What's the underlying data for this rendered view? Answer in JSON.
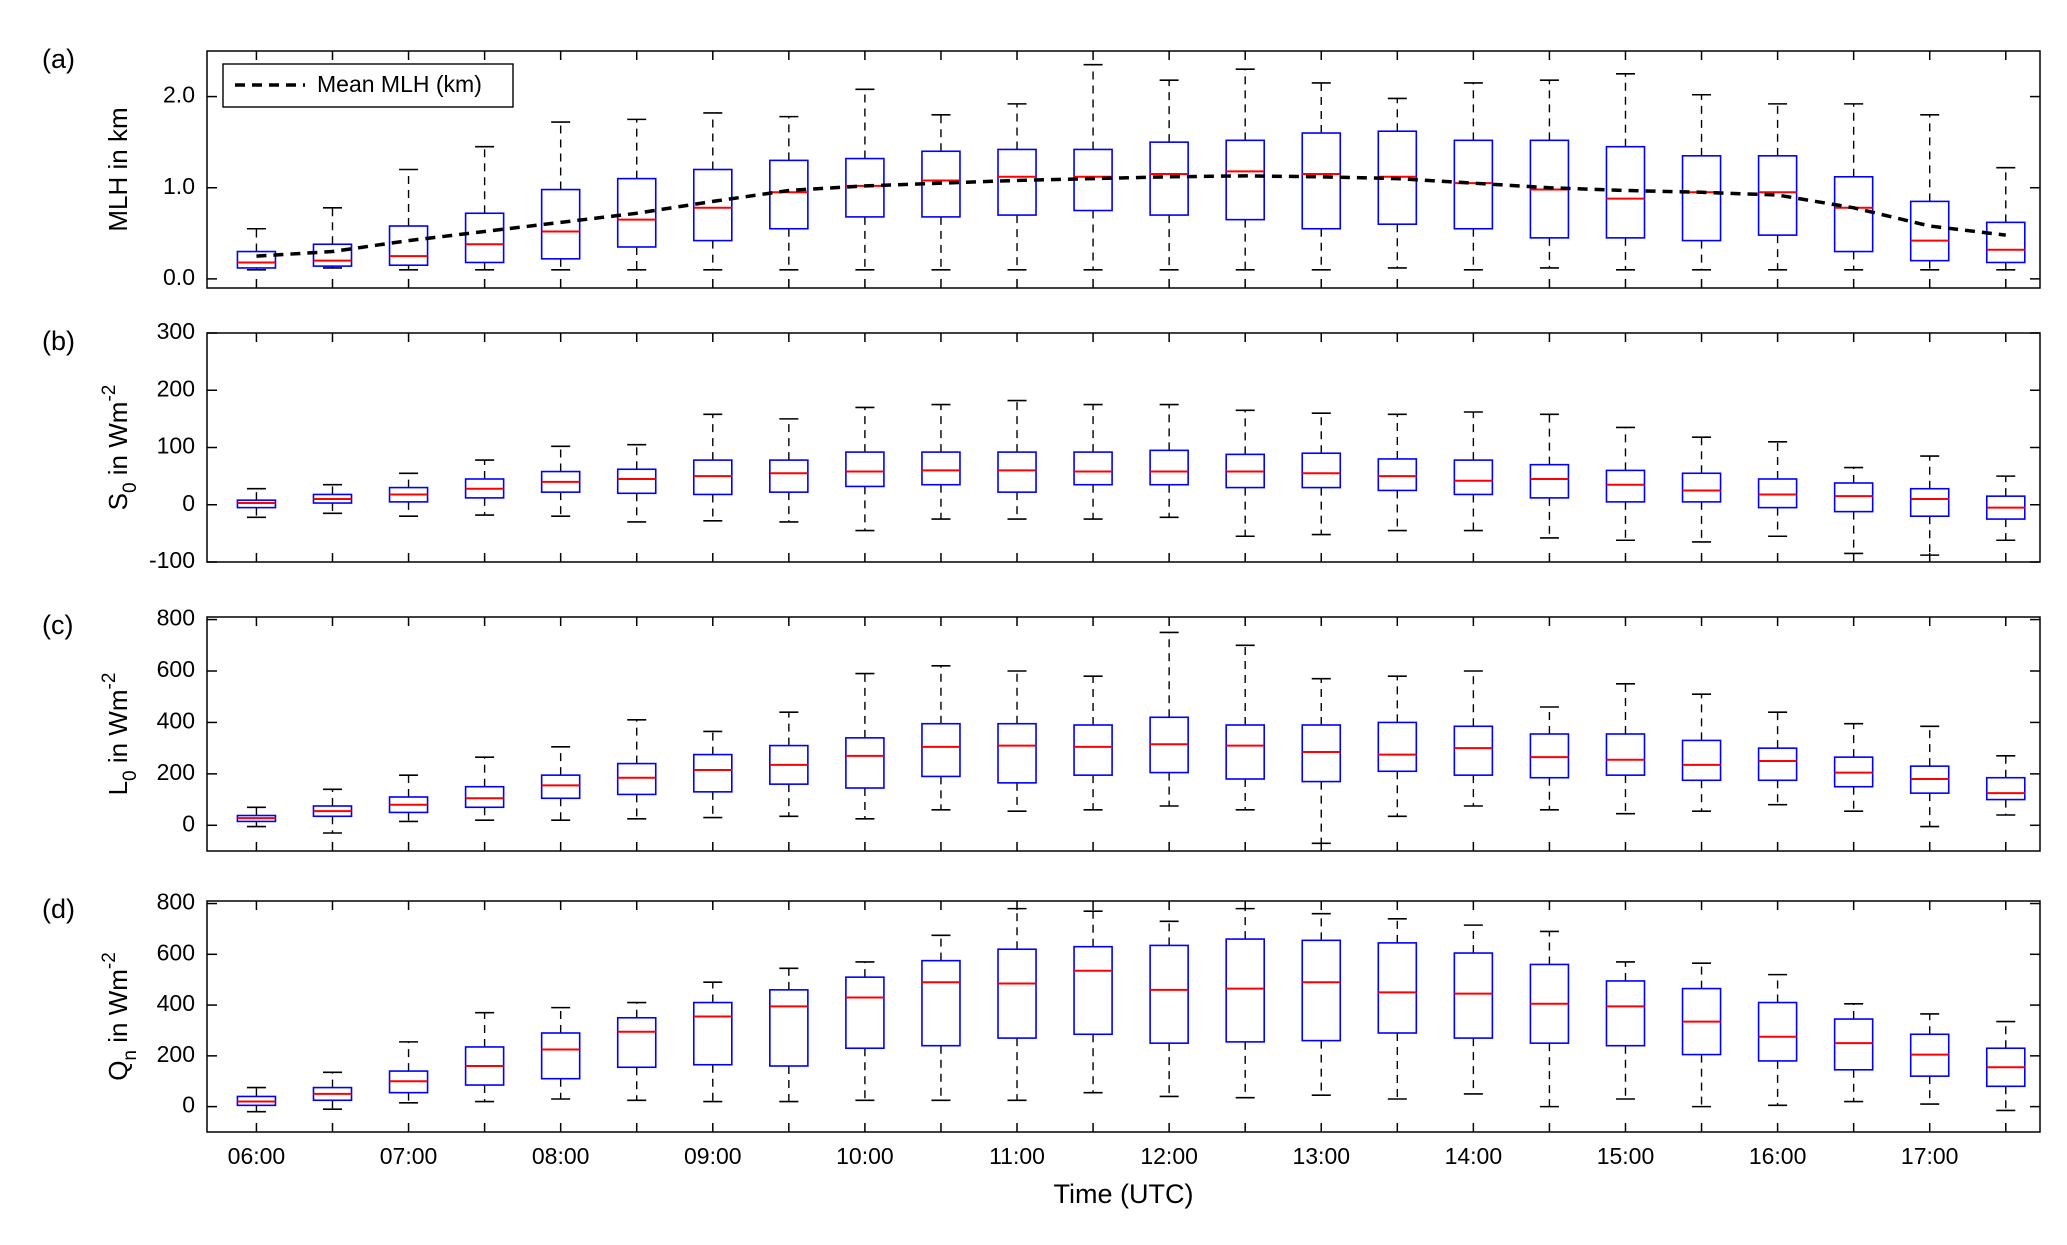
{
  "chart_data": [
    {
      "type": "box",
      "label": "(a)",
      "ylabel": [
        {
          "text": "MLH in km"
        }
      ],
      "ylim": [
        -0.1,
        2.5
      ],
      "yticks": [
        {
          "value": 0,
          "label": "0.0"
        },
        {
          "value": 1,
          "label": "1.0"
        },
        {
          "value": 2,
          "label": "2.0"
        }
      ],
      "box_color": "#0000ff",
      "median_color": "#ff0000",
      "legend": "upper left",
      "whislo": [
        0.1,
        0.12,
        0.1,
        0.1,
        0.1,
        0.1,
        0.1,
        0.1,
        0.1,
        0.1,
        0.1,
        0.1,
        0.1,
        0.1,
        0.1,
        0.12,
        0.1,
        0.12,
        0.1,
        0.1,
        0.1,
        0.1,
        0.1,
        0.1
      ],
      "q1": [
        0.12,
        0.14,
        0.15,
        0.18,
        0.22,
        0.35,
        0.42,
        0.55,
        0.68,
        0.68,
        0.7,
        0.75,
        0.7,
        0.65,
        0.55,
        0.6,
        0.55,
        0.45,
        0.45,
        0.42,
        0.48,
        0.3,
        0.2,
        0.18
      ],
      "median": [
        0.18,
        0.2,
        0.25,
        0.38,
        0.52,
        0.65,
        0.78,
        0.95,
        1.02,
        1.08,
        1.12,
        1.12,
        1.15,
        1.18,
        1.15,
        1.12,
        1.05,
        0.98,
        0.88,
        0.95,
        0.95,
        0.78,
        0.42,
        0.32
      ],
      "q3": [
        0.3,
        0.38,
        0.58,
        0.72,
        0.98,
        1.1,
        1.2,
        1.3,
        1.32,
        1.4,
        1.42,
        1.42,
        1.5,
        1.52,
        1.6,
        1.62,
        1.52,
        1.52,
        1.45,
        1.35,
        1.35,
        1.12,
        0.85,
        0.62
      ],
      "whishi": [
        0.55,
        0.78,
        1.2,
        1.45,
        1.72,
        1.75,
        1.82,
        1.78,
        2.08,
        1.8,
        1.92,
        2.35,
        2.18,
        2.3,
        2.15,
        1.98,
        2.15,
        2.18,
        2.25,
        2.02,
        1.92,
        1.92,
        1.8,
        1.22
      ],
      "series": [
        {
          "name": "Mean MLH (km)",
          "color": "#000000",
          "values": [
            0.25,
            0.3,
            0.42,
            0.52,
            0.62,
            0.72,
            0.85,
            0.97,
            1.02,
            1.05,
            1.08,
            1.1,
            1.12,
            1.13,
            1.12,
            1.1,
            1.05,
            1.0,
            0.97,
            0.95,
            0.92,
            0.78,
            0.58,
            0.48
          ]
        }
      ]
    },
    {
      "type": "box",
      "label": "(b)",
      "ylabel": [
        {
          "text": "S"
        },
        {
          "text": "0",
          "sub": true
        },
        {
          "text": " in Wm"
        },
        {
          "text": "-2",
          "sup": true
        }
      ],
      "ylim": [
        -100,
        300
      ],
      "yticks": [
        -100,
        0,
        100,
        200,
        300
      ],
      "box_color": "#0000ff",
      "median_color": "#ff0000",
      "whislo": [
        -22,
        -15,
        -20,
        -18,
        -20,
        -30,
        -28,
        -30,
        -45,
        -25,
        -25,
        -25,
        -22,
        -55,
        -52,
        -45,
        -45,
        -58,
        -62,
        -65,
        -55,
        -85,
        -88,
        -62
      ],
      "q1": [
        -5,
        3,
        5,
        12,
        22,
        20,
        18,
        22,
        32,
        35,
        22,
        35,
        35,
        30,
        30,
        25,
        18,
        12,
        5,
        5,
        -5,
        -12,
        -20,
        -25
      ],
      "median": [
        3,
        10,
        18,
        28,
        40,
        45,
        50,
        55,
        58,
        60,
        60,
        58,
        58,
        58,
        55,
        50,
        42,
        45,
        35,
        25,
        18,
        15,
        10,
        -5
      ],
      "q3": [
        8,
        18,
        30,
        45,
        58,
        62,
        78,
        78,
        92,
        92,
        92,
        92,
        95,
        88,
        90,
        80,
        78,
        70,
        60,
        55,
        45,
        38,
        28,
        15
      ],
      "whishi": [
        28,
        35,
        55,
        78,
        102,
        105,
        158,
        150,
        170,
        175,
        182,
        175,
        175,
        165,
        160,
        158,
        162,
        158,
        135,
        118,
        110,
        65,
        85,
        50
      ]
    },
    {
      "type": "box",
      "label": "(c)",
      "ylabel": [
        {
          "text": "L"
        },
        {
          "text": "0",
          "sub": true
        },
        {
          "text": " in Wm"
        },
        {
          "text": "-2",
          "sup": true
        }
      ],
      "ylim": [
        -100,
        810
      ],
      "yticks": [
        0,
        200,
        400,
        600,
        800
      ],
      "box_color": "#0000ff",
      "median_color": "#ff0000",
      "whislo": [
        -5,
        -30,
        15,
        20,
        20,
        25,
        30,
        35,
        25,
        60,
        55,
        60,
        75,
        60,
        -70,
        35,
        75,
        60,
        45,
        55,
        80,
        55,
        -5,
        40
      ],
      "q1": [
        15,
        35,
        50,
        70,
        105,
        120,
        130,
        160,
        145,
        190,
        165,
        195,
        205,
        180,
        170,
        210,
        195,
        185,
        195,
        175,
        175,
        150,
        125,
        100
      ],
      "median": [
        28,
        55,
        80,
        105,
        155,
        185,
        215,
        235,
        270,
        305,
        310,
        305,
        315,
        310,
        285,
        275,
        300,
        265,
        255,
        235,
        250,
        205,
        180,
        125
      ],
      "q3": [
        38,
        75,
        110,
        150,
        195,
        240,
        275,
        310,
        340,
        395,
        395,
        390,
        420,
        390,
        390,
        400,
        385,
        355,
        355,
        330,
        300,
        265,
        230,
        185
      ],
      "whishi": [
        70,
        140,
        195,
        265,
        305,
        410,
        365,
        440,
        590,
        620,
        600,
        580,
        750,
        700,
        570,
        580,
        600,
        460,
        550,
        510,
        440,
        395,
        385,
        270
      ]
    },
    {
      "type": "box",
      "label": "(d)",
      "ylabel": [
        {
          "text": "Q"
        },
        {
          "text": "n",
          "sub": true
        },
        {
          "text": " in Wm"
        },
        {
          "text": "-2",
          "sup": true
        }
      ],
      "ylim": [
        -100,
        810
      ],
      "yticks": [
        0,
        200,
        400,
        600,
        800
      ],
      "box_color": "#0000ff",
      "median_color": "#ff0000",
      "xlabel": "Time (UTC)",
      "categories": [
        "06:00",
        null,
        "07:00",
        null,
        "08:00",
        null,
        "09:00",
        null,
        "10:00",
        null,
        "11:00",
        null,
        "12:00",
        null,
        "13:00",
        null,
        "14:00",
        null,
        "15:00",
        null,
        "16:00",
        null,
        "17:00",
        null
      ],
      "whislo": [
        -20,
        -10,
        15,
        20,
        30,
        25,
        20,
        20,
        25,
        25,
        25,
        55,
        40,
        35,
        45,
        30,
        50,
        0,
        30,
        0,
        5,
        20,
        10,
        -15
      ],
      "q1": [
        5,
        25,
        55,
        85,
        110,
        155,
        165,
        160,
        230,
        240,
        270,
        285,
        250,
        255,
        260,
        290,
        270,
        250,
        240,
        205,
        180,
        145,
        120,
        80
      ],
      "median": [
        20,
        50,
        100,
        160,
        225,
        295,
        355,
        395,
        430,
        490,
        485,
        535,
        460,
        465,
        490,
        450,
        445,
        405,
        395,
        335,
        275,
        250,
        205,
        155
      ],
      "q3": [
        40,
        75,
        140,
        235,
        290,
        350,
        410,
        460,
        510,
        575,
        620,
        630,
        635,
        660,
        655,
        645,
        605,
        560,
        495,
        465,
        410,
        345,
        285,
        230
      ],
      "whishi": [
        75,
        135,
        255,
        370,
        390,
        410,
        490,
        545,
        570,
        675,
        780,
        770,
        730,
        780,
        760,
        740,
        715,
        690,
        570,
        565,
        520,
        405,
        365,
        335
      ]
    }
  ]
}
